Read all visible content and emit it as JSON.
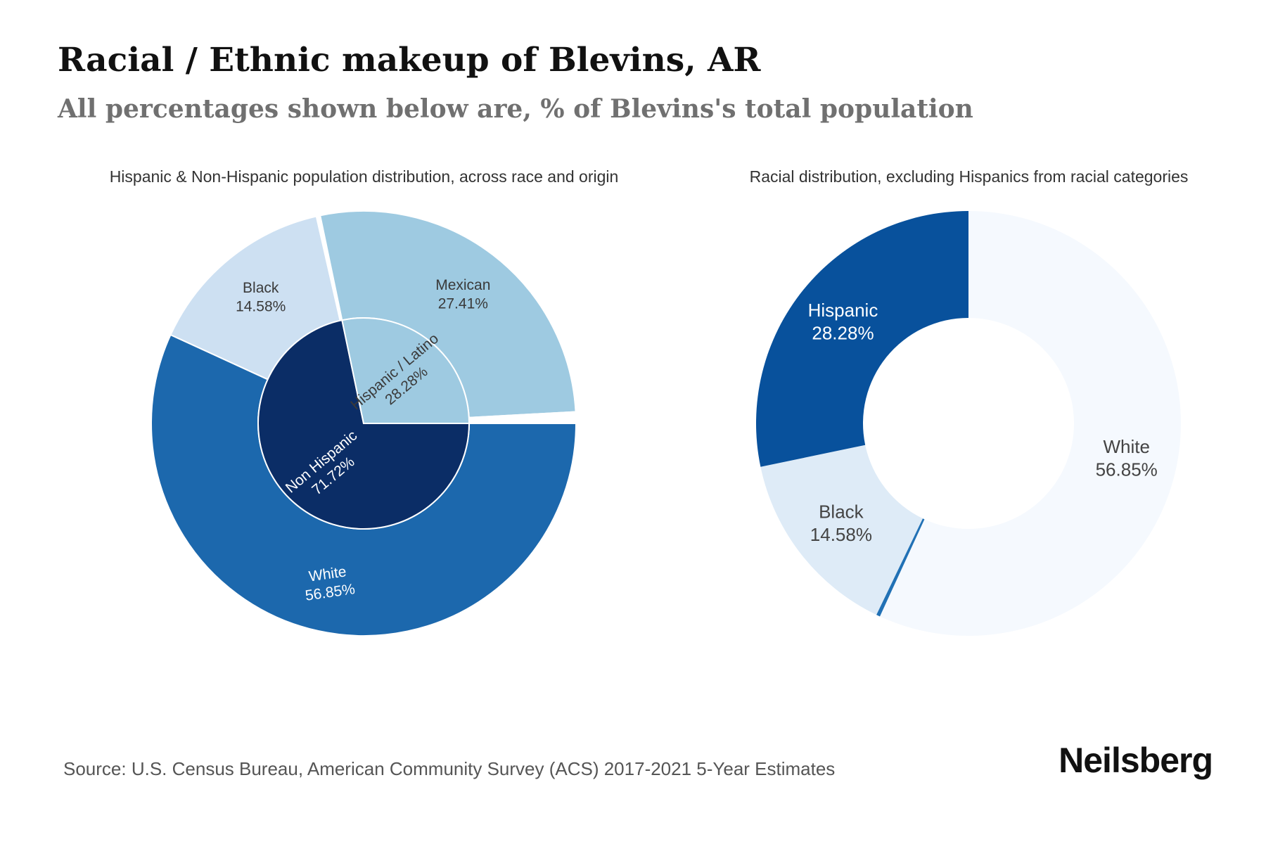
{
  "title": "Racial / Ethnic makeup of Blevins, AR",
  "subtitle": "All percentages shown below are, % of Blevins's total population",
  "source": "Source: U.S. Census Bureau, American Community Survey (ACS) 2017-2021 5-Year Estimates",
  "brand": "Neilsberg",
  "chart_data": [
    {
      "type": "pie",
      "title": "Hispanic & Non-Hispanic population distribution, across race and origin",
      "inner": [
        {
          "label": "Non Hispanic",
          "value": 71.72,
          "value_text": "71.72%",
          "color": "#0b2d66"
        },
        {
          "label": "Hispanic / Latino",
          "value": 28.28,
          "value_text": "28.28%",
          "color": "#9ecae1"
        }
      ],
      "outer": [
        {
          "label": "White",
          "value": 56.85,
          "value_text": "56.85%",
          "color": "#1c68ad"
        },
        {
          "label": "Black",
          "value": 14.58,
          "value_text": "14.58%",
          "color": "#cde0f2"
        },
        {
          "label": "",
          "value": 0.29,
          "value_text": "",
          "color": "#ffffff"
        },
        {
          "label": "Mexican",
          "value": 27.41,
          "value_text": "27.41%",
          "color": "#9ecae1"
        },
        {
          "label": "",
          "value": 0.87,
          "value_text": "",
          "color": "#ffffff"
        }
      ]
    },
    {
      "type": "pie",
      "title": "Racial distribution, excluding Hispanics from racial categories",
      "slices": [
        {
          "label": "White",
          "value": 56.85,
          "value_text": "56.85%",
          "color": "#f5f9fe"
        },
        {
          "label": "",
          "value": 0.29,
          "value_text": "",
          "color": "#2171b5"
        },
        {
          "label": "Black",
          "value": 14.58,
          "value_text": "14.58%",
          "color": "#deebf7"
        },
        {
          "label": "Hispanic",
          "value": 28.28,
          "value_text": "28.28%",
          "color": "#08519c"
        }
      ]
    }
  ]
}
